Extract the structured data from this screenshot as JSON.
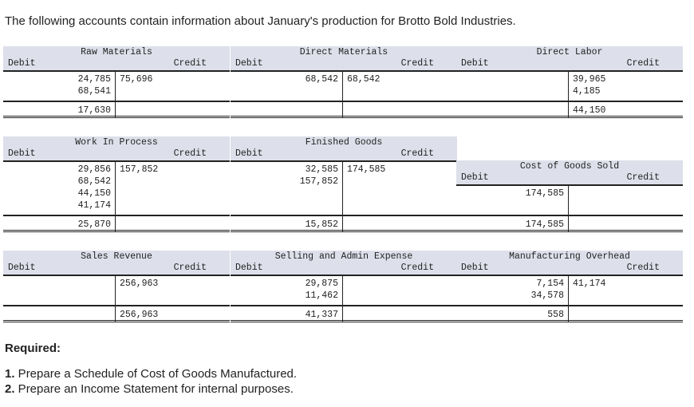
{
  "intro": "The following accounts contain information about January's production for Brotto Bold Industries.",
  "debit_label": "Debit",
  "credit_label": "Credit",
  "accounts": {
    "raw_materials": {
      "title": "Raw Materials",
      "debits": [
        "24,785",
        "68,541"
      ],
      "credits": [
        "75,696"
      ],
      "balance_debit": "17,630",
      "balance_credit": ""
    },
    "direct_materials": {
      "title": "Direct Materials",
      "debits": [
        "68,542"
      ],
      "credits": [
        "68,542"
      ],
      "balance_debit": "",
      "balance_credit": ""
    },
    "direct_labor": {
      "title": "Direct Labor",
      "debits": [],
      "credits": [
        "39,965",
        "4,185"
      ],
      "balance_debit": "",
      "balance_credit": "44,150"
    },
    "work_in_process": {
      "title": "Work In Process",
      "debits": [
        "29,856",
        "68,542",
        "44,150",
        "41,174"
      ],
      "credits": [
        "157,852"
      ],
      "balance_debit": "25,870",
      "balance_credit": ""
    },
    "finished_goods": {
      "title": "Finished Goods",
      "debits": [
        "32,585",
        "157,852"
      ],
      "credits": [
        "174,585"
      ],
      "balance_debit": "15,852",
      "balance_credit": ""
    },
    "cost_of_goods_sold": {
      "title": "Cost of Goods Sold",
      "debits": [
        "174,585"
      ],
      "credits": [],
      "balance_debit": "174,585",
      "balance_credit": ""
    },
    "sales_revenue": {
      "title": "Sales Revenue",
      "debits": [],
      "credits": [
        "256,963"
      ],
      "balance_debit": "",
      "balance_credit": "256,963"
    },
    "selling_admin_expense": {
      "title": "Selling and Admin Expense",
      "debits": [
        "29,875",
        "11,462"
      ],
      "credits": [],
      "balance_debit": "41,337",
      "balance_credit": ""
    },
    "manufacturing_overhead": {
      "title": "Manufacturing Overhead",
      "debits": [
        "7,154",
        "34,578"
      ],
      "credits": [
        "41,174"
      ],
      "balance_debit": "558",
      "balance_credit": ""
    }
  },
  "required": {
    "heading": "Required:",
    "items": [
      {
        "num": "1.",
        "text": " Prepare a Schedule of Cost of Goods Manufactured."
      },
      {
        "num": "2.",
        "text": " Prepare an Income Statement for internal purposes."
      }
    ]
  }
}
